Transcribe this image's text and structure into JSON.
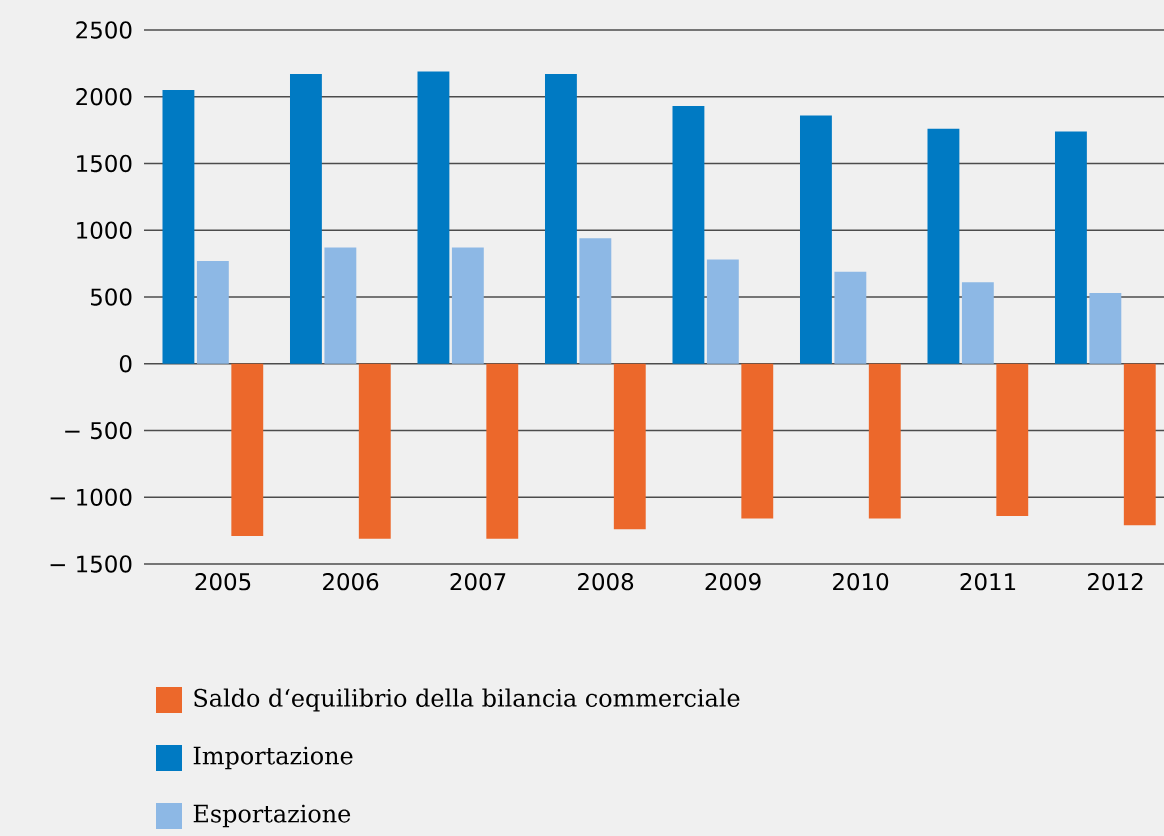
{
  "chart_data": {
    "type": "bar",
    "categories": [
      "2005",
      "2006",
      "2007",
      "2008",
      "2009",
      "2010",
      "2011",
      "2012"
    ],
    "series": [
      {
        "name": "Importazione",
        "color": "#007ac3",
        "values": [
          2050,
          2170,
          2190,
          2170,
          1930,
          1860,
          1760,
          1740
        ]
      },
      {
        "name": "Esportazione",
        "color": "#8db8e5",
        "values": [
          770,
          870,
          870,
          940,
          780,
          690,
          610,
          530
        ]
      },
      {
        "name": "Saldo d‘equilibrio della bilancia commerciale",
        "color": "#ec682b",
        "values": [
          -1290,
          -1310,
          -1310,
          -1240,
          -1160,
          -1160,
          -1140,
          -1210
        ]
      }
    ],
    "ylim": [
      -1500,
      2500
    ],
    "yticks": [
      {
        "value": -1500,
        "label": "− 1500"
      },
      {
        "value": -1000,
        "label": "− 1000"
      },
      {
        "value": -500,
        "label": "− 500"
      },
      0,
      500,
      1000,
      1500,
      2000,
      2500
    ],
    "grid": "y",
    "legend": "bottom"
  }
}
